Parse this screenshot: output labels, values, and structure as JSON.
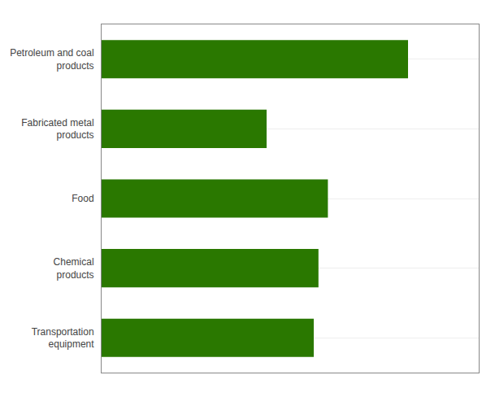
{
  "chart_data": {
    "type": "bar",
    "orientation": "horizontal",
    "categories": [
      "Petroleum and coal\nproducts",
      "Fabricated metal\nproducts",
      "Food",
      "Chemical\nproducts",
      "Transportation\nequipment"
    ],
    "values": [
      6.5,
      3.5,
      4.8,
      4.6,
      4.5
    ],
    "color": "#2a7800",
    "xlim": [
      0,
      8
    ],
    "xticks": [],
    "grid": true,
    "tick_labels": "y"
  }
}
